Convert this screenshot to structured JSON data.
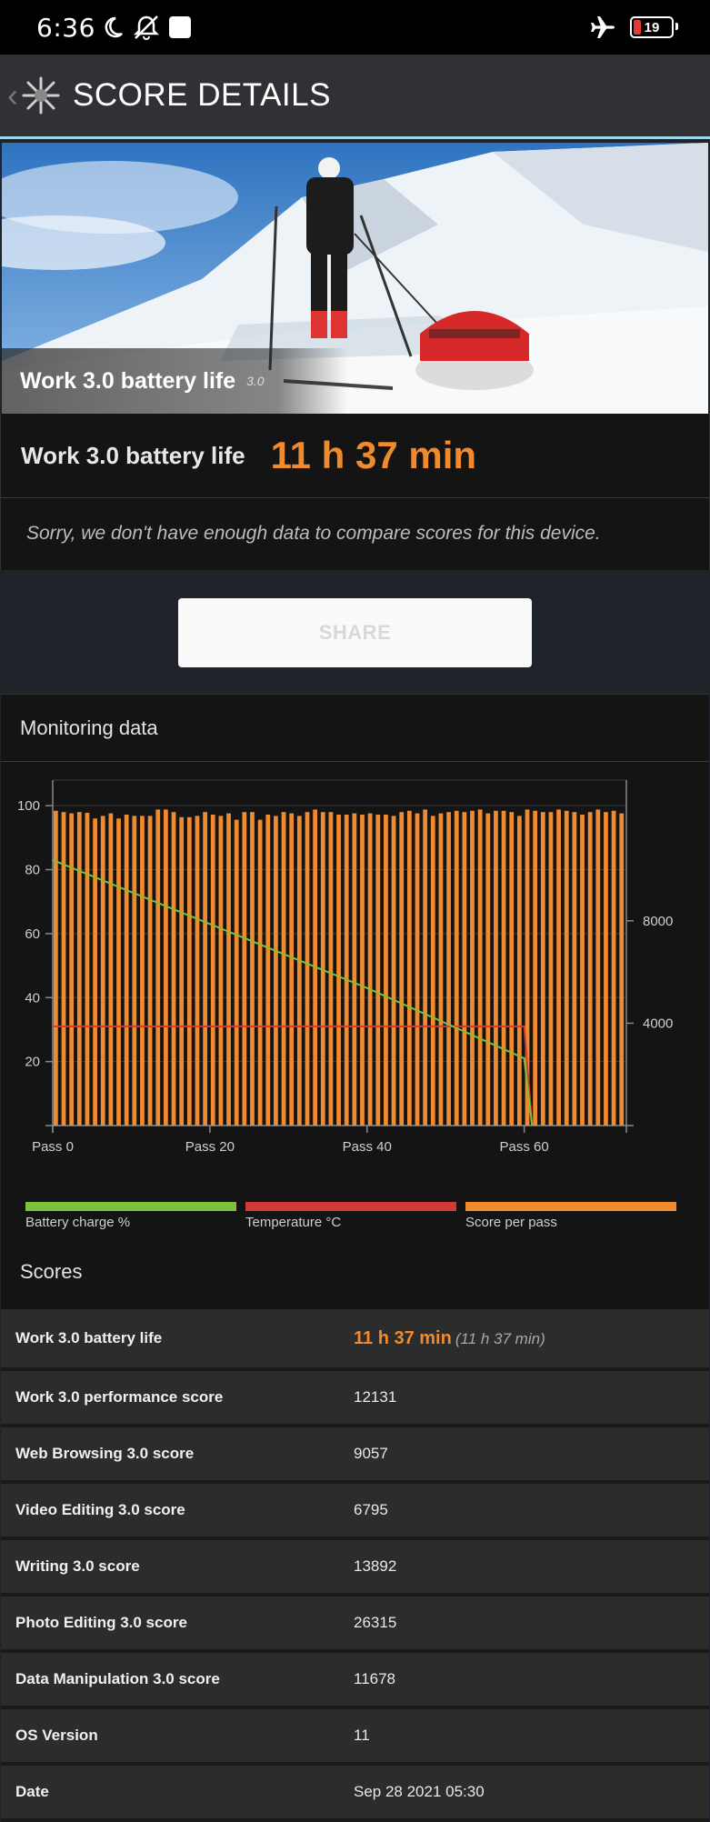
{
  "status_bar": {
    "time": "6:36",
    "battery_level": "19"
  },
  "app_bar": {
    "title": "SCORE DETAILS"
  },
  "hero": {
    "title": "Work 3.0 battery life",
    "version": "3.0"
  },
  "score_card": {
    "label": "Work 3.0 battery life",
    "value": "11 h 37 min",
    "note": "Sorry, we don't have enough data to compare scores for this device."
  },
  "share_label": "SHARE",
  "monitoring": {
    "title": "Monitoring data",
    "legend": [
      {
        "label": "Battery charge %",
        "color": "#7cc03b"
      },
      {
        "label": "Temperature °C",
        "color": "#d23a3a"
      },
      {
        "label": "Score per pass",
        "color": "#f08a2e"
      }
    ]
  },
  "chart_data": {
    "type": "bar",
    "x_tick_labels": [
      "Pass 0",
      "Pass 20",
      "Pass 40",
      "Pass 60"
    ],
    "x_ticks": [
      0,
      20,
      40,
      60
    ],
    "xlim": [
      0,
      73
    ],
    "left_axis": {
      "ticks": [
        20,
        40,
        60,
        80,
        100
      ],
      "ylim": [
        0,
        108
      ]
    },
    "right_axis": {
      "ticks": [
        4000,
        8000
      ],
      "tick_labels": [
        "4000",
        "8000"
      ],
      "ylim": [
        0,
        13500
      ]
    },
    "grid": true,
    "series": [
      {
        "name": "Score per pass",
        "axis": "right",
        "color": "#f08a2e",
        "values": [
          12300,
          12250,
          12200,
          12250,
          12220,
          12000,
          12100,
          12200,
          12000,
          12150,
          12100,
          12100,
          12100,
          12350,
          12350,
          12250,
          12050,
          12050,
          12100,
          12250,
          12150,
          12100,
          12200,
          11950,
          12250,
          12250,
          11950,
          12150,
          12100,
          12250,
          12200,
          12100,
          12250,
          12350,
          12250,
          12250,
          12150,
          12150,
          12200,
          12150,
          12200,
          12150,
          12150,
          12100,
          12250,
          12300,
          12200,
          12350,
          12100,
          12200,
          12250,
          12300,
          12250,
          12300,
          12350,
          12200,
          12300,
          12300,
          12250,
          12100,
          12350,
          12300,
          12250,
          12250,
          12350,
          12300,
          12250,
          12150,
          12250,
          12350,
          12250,
          12300,
          12200
        ]
      },
      {
        "name": "Battery charge %",
        "axis": "left",
        "color": "#7cc03b",
        "x": [
          0,
          20,
          40,
          60,
          61
        ],
        "values": [
          83,
          63,
          43,
          21,
          0
        ]
      },
      {
        "name": "Temperature °C",
        "axis": "left",
        "color": "#d23a3a",
        "x": [
          0,
          60,
          61
        ],
        "values": [
          31,
          31,
          0
        ]
      }
    ]
  },
  "scores": {
    "title": "Scores",
    "rows": [
      {
        "name": "Work 3.0 battery life",
        "value": "11 h 37 min",
        "sub": "(11 h 37 min)"
      },
      {
        "name": "Work 3.0 performance score",
        "value": "12131"
      },
      {
        "name": "Web Browsing 3.0 score",
        "value": "9057"
      },
      {
        "name": "Video Editing 3.0 score",
        "value": "6795"
      },
      {
        "name": "Writing 3.0 score",
        "value": "13892"
      },
      {
        "name": "Photo Editing 3.0 score",
        "value": "26315"
      },
      {
        "name": "Data Manipulation 3.0 score",
        "value": "11678"
      },
      {
        "name": "OS Version",
        "value": "11"
      },
      {
        "name": "Date",
        "value": "Sep 28 2021 05:30"
      }
    ]
  }
}
